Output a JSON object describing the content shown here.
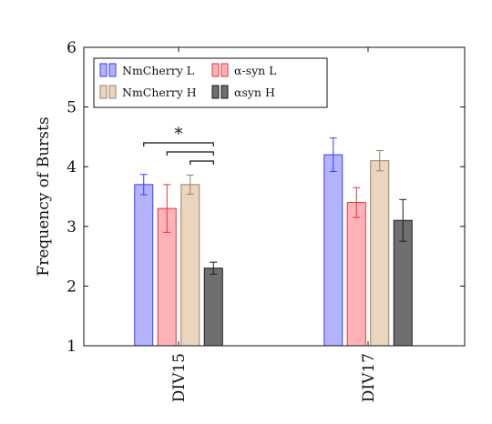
{
  "chart_data": {
    "type": "bar",
    "title": "",
    "xlabel": "",
    "ylabel": "Frequency of Bursts",
    "ylim": [
      1,
      6
    ],
    "yticks": [
      1,
      2,
      3,
      4,
      5,
      6
    ],
    "categories": [
      "DIV15",
      "DIV17"
    ],
    "grid": false,
    "legend_position": "top-left",
    "series": [
      {
        "name": "NmCherry L",
        "fill": "#b3b3ff",
        "stroke": "#3b3bff",
        "values": [
          3.7,
          4.2
        ],
        "errors": [
          0.17,
          0.28
        ]
      },
      {
        "name": "α-syn L",
        "fill": "#ffb3b8",
        "stroke": "#e0343f",
        "values": [
          3.3,
          3.4
        ],
        "errors": [
          0.4,
          0.25
        ]
      },
      {
        "name": "NmCherry H",
        "fill": "#ead6bf",
        "stroke": "#9a7e63",
        "values": [
          3.7,
          4.1
        ],
        "errors": [
          0.16,
          0.17
        ]
      },
      {
        "name": "αsyn H",
        "fill": "#6f6f6f",
        "stroke": "#1a1a1a",
        "values": [
          2.3,
          3.1
        ],
        "errors": [
          0.1,
          0.35
        ]
      }
    ],
    "annotations": [
      {
        "text": "*",
        "group": "DIV15",
        "comparisons": [
          [
            0,
            3
          ],
          [
            1,
            3
          ],
          [
            2,
            3
          ]
        ]
      }
    ]
  }
}
